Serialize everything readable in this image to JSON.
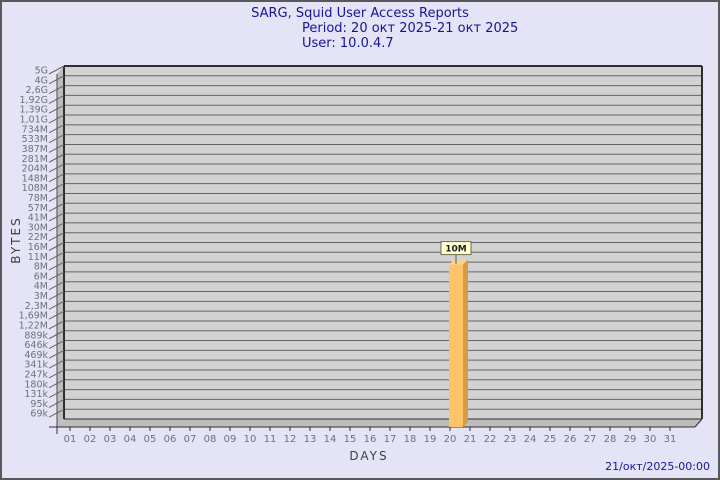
{
  "header": {
    "title": "SARG, Squid User Access Reports",
    "period": "Period: 20 окт 2025-21 окт 2025",
    "user": "User: 10.0.4.7"
  },
  "footer": {
    "timestamp": "21/окт/2025-00:00"
  },
  "chart_data": {
    "type": "bar",
    "title": "SARG, Squid User Access Reports",
    "xlabel": "DAYS",
    "ylabel": "BYTES",
    "y_scale": "logarithmic",
    "y_top_value": 5000000000,
    "y_bottom_value": 69000,
    "y_tick_labels": [
      "5G",
      "4G",
      "2,6G",
      "1,92G",
      "1,39G",
      "1,01G",
      "734M",
      "533M",
      "387M",
      "281M",
      "204M",
      "148M",
      "108M",
      "78M",
      "57M",
      "41M",
      "30M",
      "22M",
      "16M",
      "11M",
      "8M",
      "6M",
      "4M",
      "3M",
      "2,3M",
      "1,69M",
      "1,22M",
      "889k",
      "646k",
      "469k",
      "341k",
      "247k",
      "180k",
      "131k",
      "95k",
      "69k"
    ],
    "x_tick_labels": [
      "01",
      "02",
      "03",
      "04",
      "05",
      "06",
      "07",
      "08",
      "09",
      "10",
      "11",
      "12",
      "13",
      "14",
      "15",
      "16",
      "17",
      "18",
      "19",
      "20",
      "21",
      "22",
      "23",
      "24",
      "25",
      "26",
      "27",
      "28",
      "29",
      "30",
      "31"
    ],
    "bars": [
      {
        "day": 20,
        "value_bytes": 10000000,
        "value_label": "10M"
      }
    ],
    "colors": {
      "page_bg": "#e4e4f6",
      "panel": "#d2d2d2",
      "wall": "#bdbdbd",
      "grid": "#646464",
      "edge": "#2e2e2e",
      "bar_front": "#fcc368",
      "bar_side": "#d89a42",
      "bar_top": "#f4d490",
      "label_box_bg": "#ffffd2",
      "label_box_border": "#6b6b4a",
      "tick_text": "#70707a",
      "title_text": "#15159a"
    }
  }
}
